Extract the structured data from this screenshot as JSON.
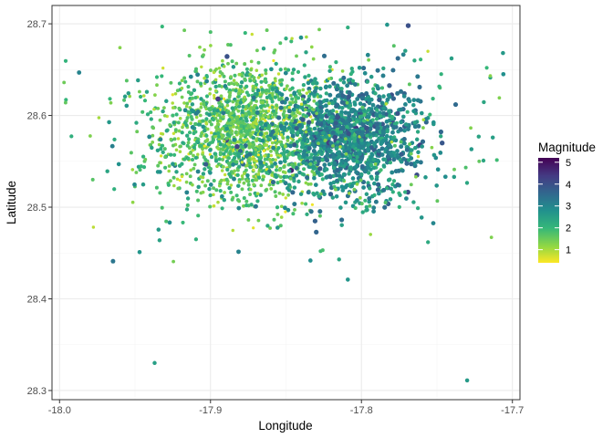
{
  "chart_data": {
    "type": "scatter",
    "xlabel": "Longitude",
    "ylabel": "Latitude",
    "xlim": [
      -18.005,
      -17.695
    ],
    "ylim": [
      28.29,
      28.72
    ],
    "x_ticks": [
      -18.0,
      -17.9,
      -17.8,
      -17.7
    ],
    "x_tick_labels": [
      "-18.0",
      "-17.9",
      "-17.8",
      "-17.7"
    ],
    "y_ticks": [
      28.3,
      28.4,
      28.5,
      28.6,
      28.7
    ],
    "y_tick_labels": [
      "28.3",
      "28.4",
      "28.5",
      "28.6",
      "28.7"
    ],
    "grid": true,
    "color_scale": {
      "name": "Magnitude",
      "palette": "viridis",
      "range": [
        0.4,
        5.2
      ],
      "breaks": [
        1,
        2,
        3,
        4,
        5
      ],
      "break_labels": [
        "1",
        "2",
        "3",
        "4",
        "5"
      ],
      "colors": [
        "#fde725",
        "#8fd744",
        "#35b779",
        "#21908d",
        "#31688e",
        "#443a83",
        "#440154"
      ]
    },
    "legend_position": "right",
    "sample_points": [
      {
        "x": -17.997,
        "y": 28.636,
        "mag": 1.5
      },
      {
        "x": -17.996,
        "y": 28.614,
        "mag": 1.6
      },
      {
        "x": -17.96,
        "y": 28.674,
        "mag": 1.3
      },
      {
        "x": -17.932,
        "y": 28.697,
        "mag": 2.0
      },
      {
        "x": -17.9,
        "y": 28.691,
        "mag": 1.8
      },
      {
        "x": -17.877,
        "y": 28.69,
        "mag": 2.0
      },
      {
        "x": -17.85,
        "y": 28.684,
        "mag": 2.2
      },
      {
        "x": -17.846,
        "y": 28.684,
        "mag": 0.9
      },
      {
        "x": -17.84,
        "y": 28.685,
        "mag": 2.8
      },
      {
        "x": -17.809,
        "y": 28.696,
        "mag": 2.2
      },
      {
        "x": -17.783,
        "y": 28.699,
        "mag": 2.7
      },
      {
        "x": -17.769,
        "y": 28.698,
        "mag": 4.0
      },
      {
        "x": -17.756,
        "y": 28.67,
        "mag": 0.8
      },
      {
        "x": -17.717,
        "y": 28.652,
        "mag": 2.0
      },
      {
        "x": -17.706,
        "y": 28.645,
        "mag": 2.8
      },
      {
        "x": -17.713,
        "y": 28.576,
        "mag": 2.5
      },
      {
        "x": -17.722,
        "y": 28.55,
        "mag": 1.6
      },
      {
        "x": -17.978,
        "y": 28.53,
        "mag": 1.7
      },
      {
        "x": -17.947,
        "y": 28.451,
        "mag": 2.7
      },
      {
        "x": -17.937,
        "y": 28.33,
        "mag": 2.5
      },
      {
        "x": -17.809,
        "y": 28.421,
        "mag": 2.7
      },
      {
        "x": -17.73,
        "y": 28.311,
        "mag": 2.6
      },
      {
        "x": -17.906,
        "y": 28.653,
        "mag": 0.9
      },
      {
        "x": -17.853,
        "y": 28.579,
        "mag": 0.9
      },
      {
        "x": -17.895,
        "y": 28.618,
        "mag": 4.4
      }
    ]
  }
}
